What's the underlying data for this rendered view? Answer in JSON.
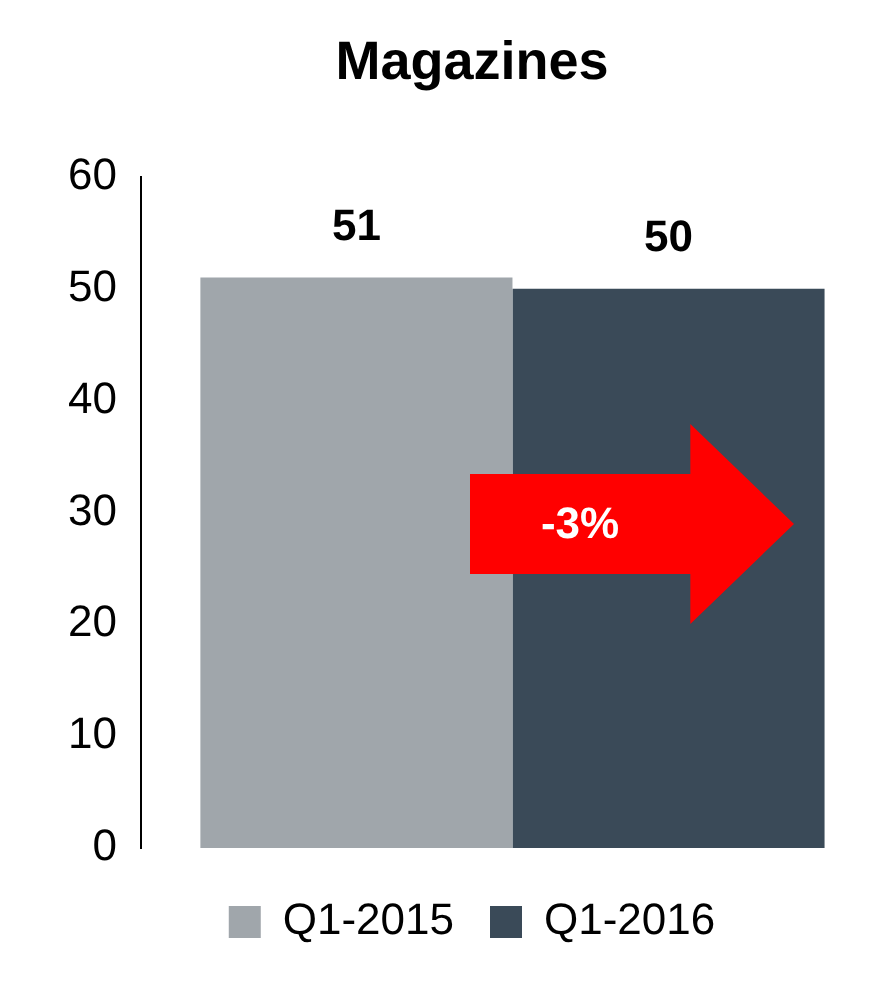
{
  "chart_data": {
    "type": "bar",
    "title": "Magazines",
    "categories": [
      null
    ],
    "series": [
      {
        "name": "Q1-2015",
        "color": "#a0a6ab",
        "values": [
          51
        ]
      },
      {
        "name": "Q1-2016",
        "color": "#3a4a58",
        "values": [
          50
        ]
      }
    ],
    "ylim": [
      0,
      60
    ],
    "yticks": [
      0,
      10,
      20,
      30,
      40,
      50,
      60
    ],
    "grid": false,
    "legend": "bottom",
    "data_labels": true,
    "annotations": [
      "-3%"
    ]
  }
}
